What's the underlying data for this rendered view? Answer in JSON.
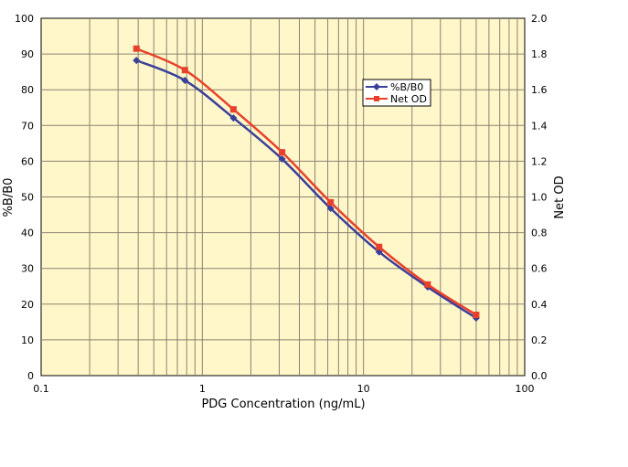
{
  "chart_data": {
    "type": "line",
    "xlabel": "PDG Concentration (ng/mL)",
    "ylabel": "%B/B0",
    "y2label": "Net OD",
    "xscale": "log",
    "xlim": [
      0.1,
      100
    ],
    "ylim": [
      0,
      100
    ],
    "y2lim": [
      0,
      2.0
    ],
    "grid": true,
    "legend_position": "upper-right-inner",
    "x_ticks": [
      "0.1",
      "1",
      "10",
      "100"
    ],
    "y_ticks": [
      "0",
      "10",
      "20",
      "30",
      "40",
      "50",
      "60",
      "70",
      "80",
      "90",
      "100"
    ],
    "y2_ticks": [
      "0.0",
      "0.2",
      "0.4",
      "0.6",
      "0.8",
      "1.0",
      "1.2",
      "1.4",
      "1.6",
      "1.8",
      "2.0"
    ],
    "x": [
      0.39,
      0.78,
      1.56,
      3.125,
      6.25,
      12.5,
      25,
      50
    ],
    "series": [
      {
        "name": "%B/B0",
        "axis": "left",
        "color": "#3a3f9a",
        "marker": "diamond",
        "values": [
          88.2,
          82.6,
          72.1,
          60.6,
          46.8,
          34.6,
          24.8,
          16.1
        ]
      },
      {
        "name": "Net OD",
        "axis": "right",
        "color": "#e8402a",
        "marker": "square",
        "values": [
          1.83,
          1.71,
          1.49,
          1.25,
          0.97,
          0.72,
          0.51,
          0.34
        ]
      }
    ],
    "colors": {
      "plot_background": "#fff7c9",
      "grid": "#8a8272"
    }
  }
}
